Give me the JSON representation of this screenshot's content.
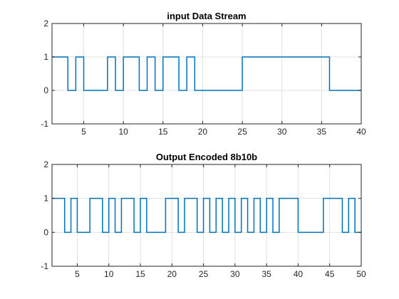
{
  "chart_data": [
    {
      "type": "line",
      "step": true,
      "title": "input Data Stream",
      "xlabel": "",
      "ylabel": "",
      "xlim": [
        1,
        40
      ],
      "ylim": [
        -1,
        2
      ],
      "xticks": [
        5,
        10,
        15,
        20,
        25,
        30,
        35,
        40
      ],
      "yticks": [
        -1,
        0,
        1,
        2
      ],
      "grid": true,
      "line_color": "#0072BD",
      "steps": [
        [
          1,
          1
        ],
        [
          2,
          1
        ],
        [
          3,
          0
        ],
        [
          4,
          1
        ],
        [
          5,
          0
        ],
        [
          6,
          0
        ],
        [
          7,
          0
        ],
        [
          8,
          1
        ],
        [
          9,
          0
        ],
        [
          10,
          1
        ],
        [
          11,
          1
        ],
        [
          12,
          0
        ],
        [
          13,
          1
        ],
        [
          14,
          0
        ],
        [
          15,
          1
        ],
        [
          16,
          1
        ],
        [
          17,
          0
        ],
        [
          18,
          1
        ],
        [
          19,
          0
        ],
        [
          20,
          0
        ],
        [
          21,
          0
        ],
        [
          22,
          0
        ],
        [
          23,
          0
        ],
        [
          24,
          0
        ],
        [
          25,
          1
        ],
        [
          26,
          1
        ],
        [
          27,
          1
        ],
        [
          28,
          1
        ],
        [
          29,
          1
        ],
        [
          30,
          1
        ],
        [
          31,
          1
        ],
        [
          32,
          1
        ],
        [
          33,
          1
        ],
        [
          34,
          1
        ],
        [
          35,
          1
        ],
        [
          36,
          0
        ],
        [
          37,
          0
        ],
        [
          38,
          0
        ],
        [
          39,
          0
        ],
        [
          40,
          0
        ]
      ]
    },
    {
      "type": "line",
      "step": true,
      "title": "Output Encoded 8b10b",
      "xlabel": "",
      "ylabel": "",
      "xlim": [
        1,
        50
      ],
      "ylim": [
        -1,
        2
      ],
      "xticks": [
        5,
        10,
        15,
        20,
        25,
        30,
        35,
        40,
        45,
        50
      ],
      "yticks": [
        -1,
        0,
        1,
        2
      ],
      "grid": true,
      "line_color": "#0072BD",
      "steps": [
        [
          1,
          1
        ],
        [
          2,
          1
        ],
        [
          3,
          0
        ],
        [
          4,
          1
        ],
        [
          5,
          0
        ],
        [
          6,
          0
        ],
        [
          7,
          1
        ],
        [
          8,
          1
        ],
        [
          9,
          0
        ],
        [
          10,
          1
        ],
        [
          11,
          0
        ],
        [
          12,
          1
        ],
        [
          13,
          1
        ],
        [
          14,
          0
        ],
        [
          15,
          1
        ],
        [
          16,
          0
        ],
        [
          17,
          0
        ],
        [
          18,
          0
        ],
        [
          19,
          1
        ],
        [
          20,
          1
        ],
        [
          21,
          0
        ],
        [
          22,
          1
        ],
        [
          23,
          1
        ],
        [
          24,
          0
        ],
        [
          25,
          1
        ],
        [
          26,
          0
        ],
        [
          27,
          1
        ],
        [
          28,
          0
        ],
        [
          29,
          1
        ],
        [
          30,
          0
        ],
        [
          31,
          1
        ],
        [
          32,
          0
        ],
        [
          33,
          1
        ],
        [
          34,
          0
        ],
        [
          35,
          1
        ],
        [
          36,
          0
        ],
        [
          37,
          1
        ],
        [
          38,
          1
        ],
        [
          39,
          1
        ],
        [
          40,
          0
        ],
        [
          41,
          0
        ],
        [
          42,
          0
        ],
        [
          43,
          0
        ],
        [
          44,
          1
        ],
        [
          45,
          1
        ],
        [
          46,
          1
        ],
        [
          47,
          0
        ],
        [
          48,
          1
        ],
        [
          49,
          0
        ],
        [
          50,
          0
        ]
      ]
    }
  ]
}
